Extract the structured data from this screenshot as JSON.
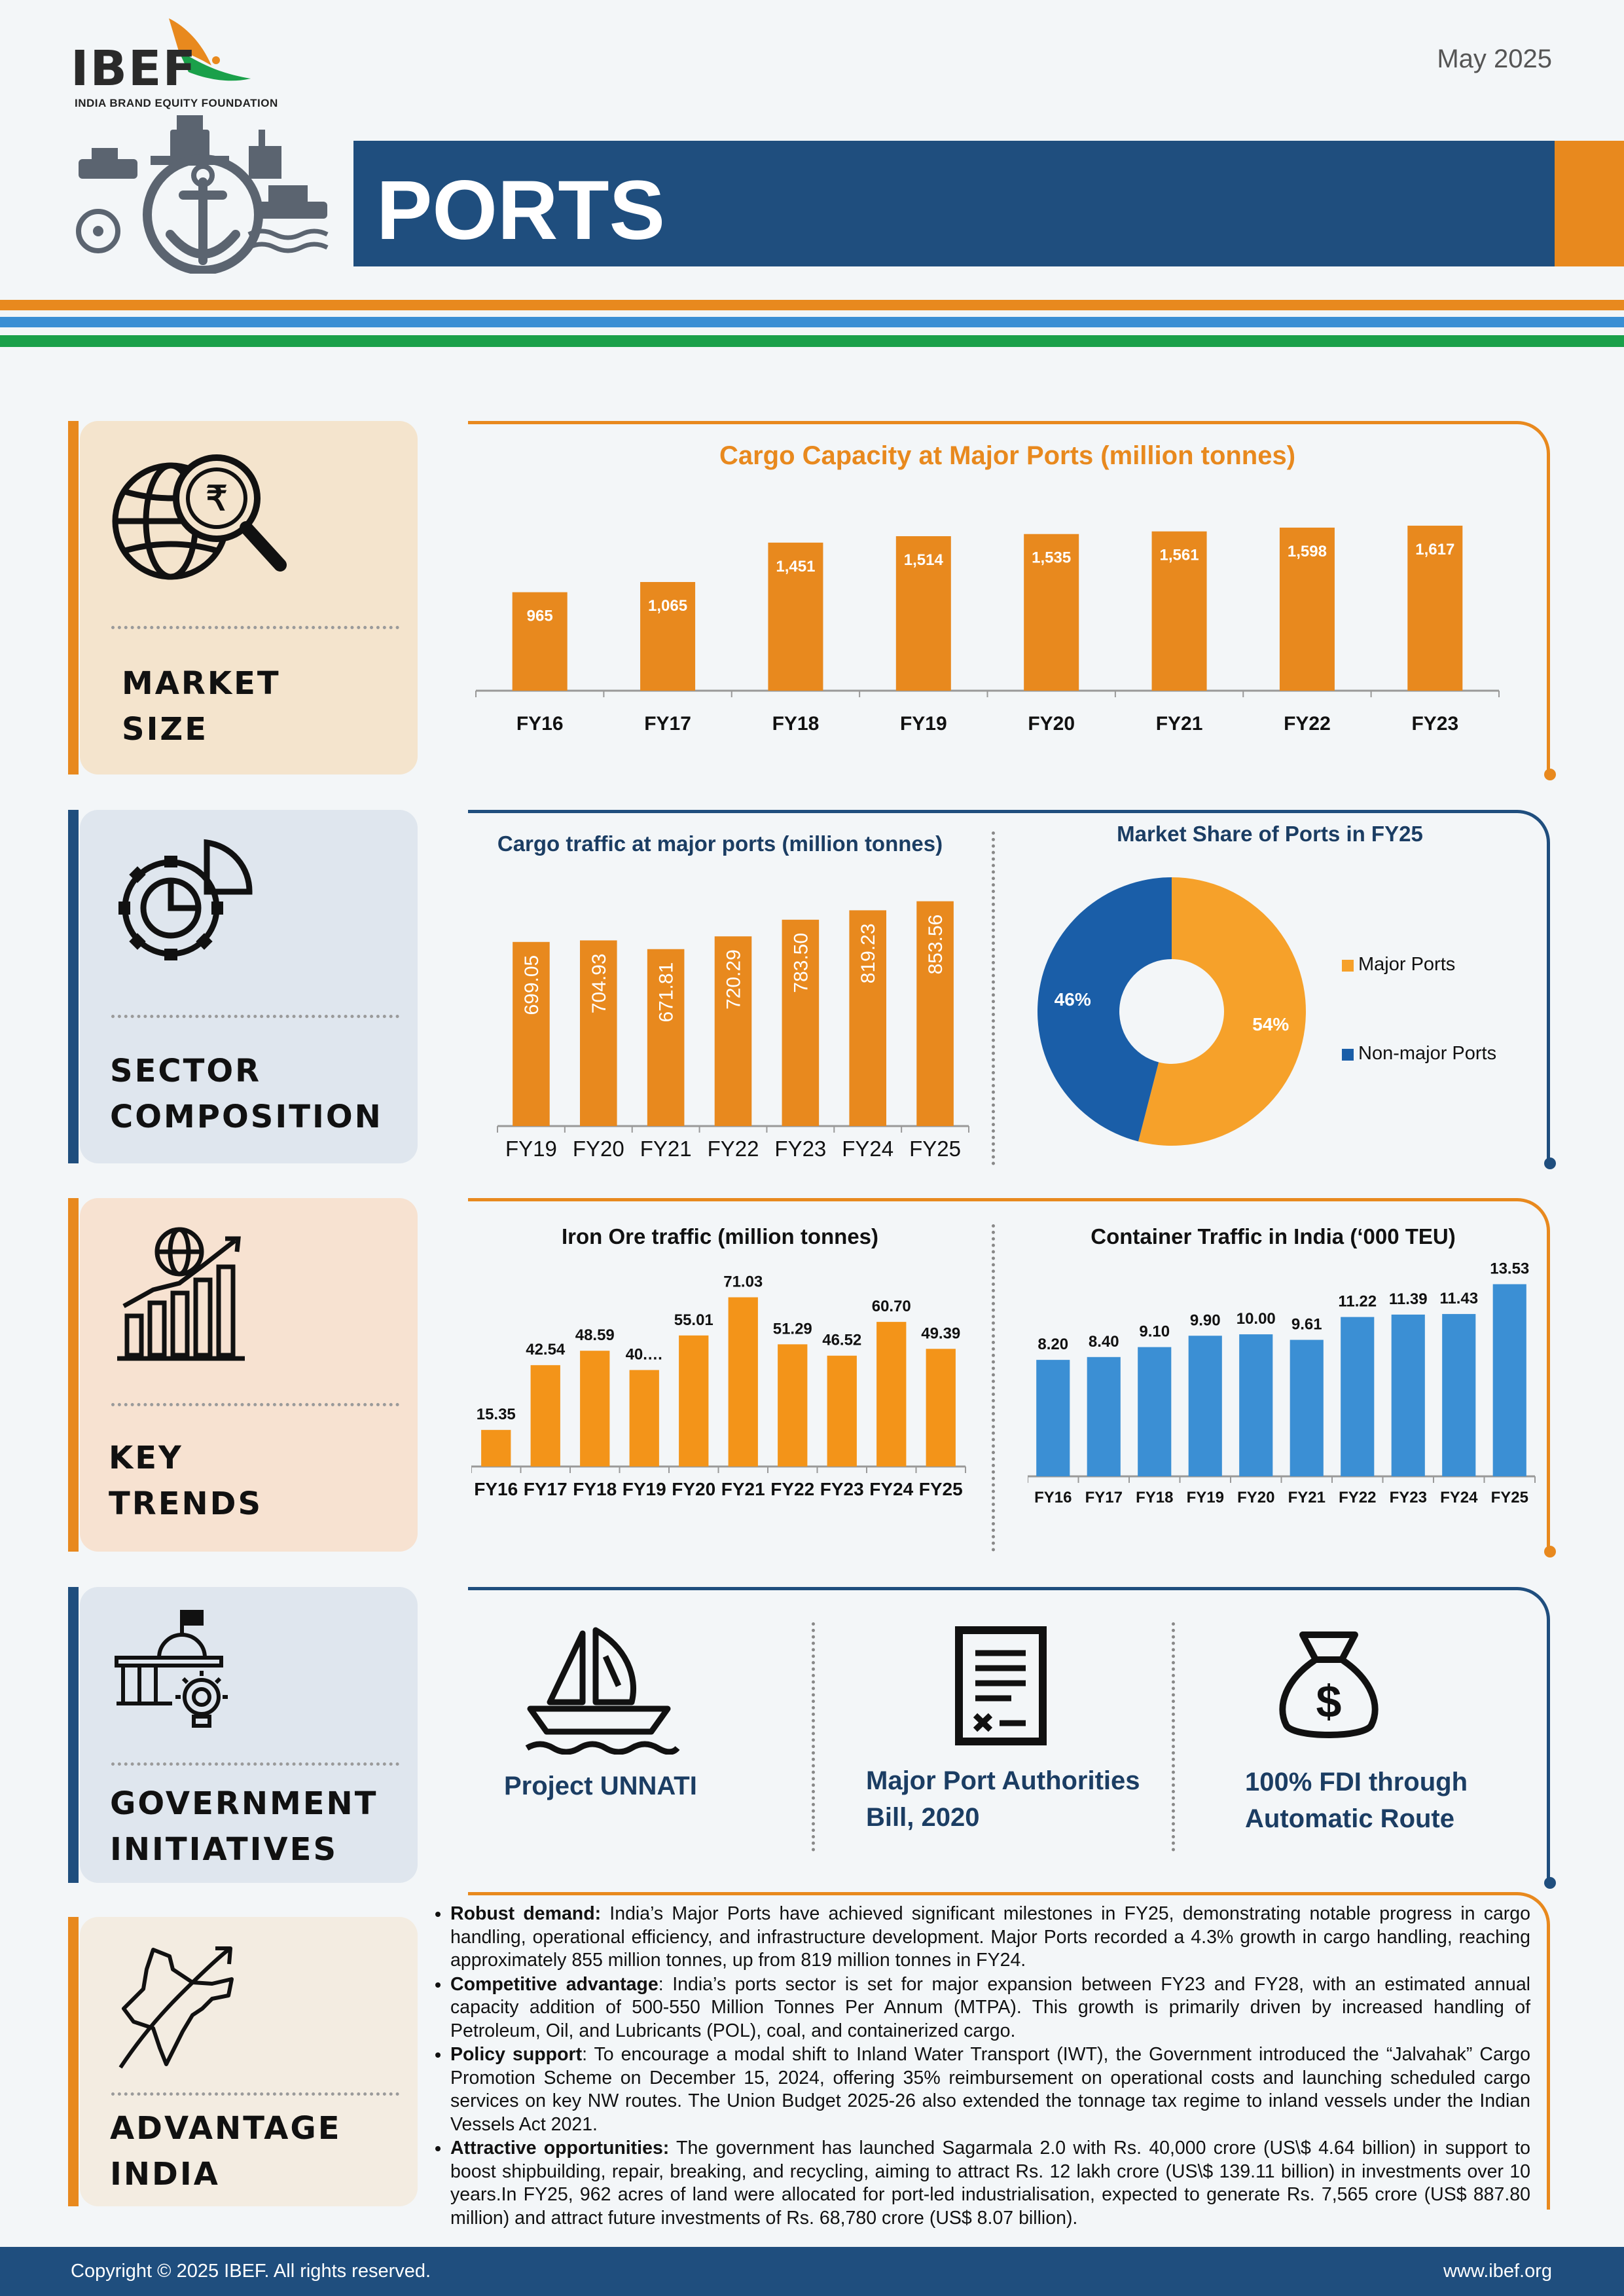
{
  "header": {
    "logo_text": "IBEF",
    "logo_subtitle": "INDIA BRAND EQUITY FOUNDATION",
    "date": "May 2025",
    "title": "PORTS"
  },
  "colors": {
    "navy": "#1f4e7e",
    "orange": "#e8891e",
    "light_orange": "#f6a12a",
    "blue": "#3b8fd4",
    "dark_blue": "#1a5ea8",
    "green": "#1aa04a",
    "stripe_blue": "#3b8fd4"
  },
  "sections": {
    "market_size": {
      "label_line1": "MARKET",
      "label_line2": "SIZE",
      "icon": "globe-magnifier-rupee-icon"
    },
    "sector_composition": {
      "label_line1": "SECTOR",
      "label_line2": "COMPOSITION",
      "icon": "gear-pie-chart-icon"
    },
    "key_trends": {
      "label_line1": "KEY",
      "label_line2": "TRENDS",
      "icon": "globe-bar-chart-icon"
    },
    "government_initiatives": {
      "label_line1": "GOVERNMENT",
      "label_line2": "INITIATIVES",
      "icon": "building-lightbulb-icon"
    },
    "advantage_india": {
      "label_line1": "ADVANTAGE",
      "label_line2": "INDIA",
      "icon": "india-map-arrow-icon"
    }
  },
  "chart_data": [
    {
      "id": "cargo_capacity",
      "type": "bar",
      "title": "Cargo Capacity at Major Ports (million tonnes)",
      "categories": [
        "FY16",
        "FY17",
        "FY18",
        "FY19",
        "FY20",
        "FY21",
        "FY22",
        "FY23"
      ],
      "values": [
        965,
        1065,
        1451,
        1514,
        1535,
        1561,
        1598,
        1617
      ],
      "labels": [
        "965",
        "1,065",
        "1,451",
        "1,514",
        "1,535",
        "1,561",
        "1,598",
        "1,617"
      ],
      "color": "#e8891e",
      "ylim": [
        0,
        1700
      ]
    },
    {
      "id": "cargo_traffic",
      "type": "bar",
      "title": "Cargo traffic at major ports (million tonnes)",
      "categories": [
        "FY19",
        "FY20",
        "FY21",
        "FY22",
        "FY23",
        "FY24",
        "FY25"
      ],
      "values": [
        699.05,
        704.93,
        671.81,
        720.29,
        783.5,
        819.23,
        853.56
      ],
      "labels": [
        "699.05",
        "704.93",
        "671.81",
        "720.29",
        "783.50",
        "819.23",
        "853.56"
      ],
      "color": "#e8891e",
      "ylim": [
        0,
        870
      ]
    },
    {
      "id": "market_share",
      "type": "pie",
      "title": "Market Share of Ports in FY25",
      "slices": [
        {
          "name": "Major Ports",
          "value": 54,
          "label": "54%",
          "color": "#f6a12a"
        },
        {
          "name": "Non-major Ports",
          "value": 46,
          "label": "46%",
          "color": "#1a5ea8"
        }
      ],
      "legend": "right"
    },
    {
      "id": "iron_ore",
      "type": "bar",
      "title": "Iron Ore traffic (million tonnes)",
      "categories": [
        "FY16",
        "FY17",
        "FY18",
        "FY19",
        "FY20",
        "FY21",
        "FY22",
        "FY23",
        "FY24",
        "FY25"
      ],
      "values": [
        15.35,
        42.54,
        48.59,
        40.5,
        55.01,
        71.03,
        51.29,
        46.52,
        60.7,
        49.39
      ],
      "labels": [
        "15.35",
        "42.54",
        "48.59",
        "40.…",
        "55.01",
        "71.03",
        "51.29",
        "46.52",
        "60.70",
        "49.39"
      ],
      "color": "#f39419",
      "ylim": [
        0,
        72
      ]
    },
    {
      "id": "container_traffic",
      "type": "bar",
      "title": "Container Traffic in India (‘000 TEU)",
      "categories": [
        "FY16",
        "FY17",
        "FY18",
        "FY19",
        "FY20",
        "FY21",
        "FY22",
        "FY23",
        "FY24",
        "FY25"
      ],
      "values": [
        8.2,
        8.4,
        9.1,
        9.9,
        10.0,
        9.61,
        11.22,
        11.39,
        11.43,
        13.53
      ],
      "labels": [
        "8.20",
        "8.40",
        "9.10",
        "9.90",
        "10.00",
        "9.61",
        "11.22",
        "11.39",
        "11.43",
        "13.53"
      ],
      "color": "#3b8fd4",
      "ylim": [
        0,
        13.6
      ]
    }
  ],
  "initiatives": [
    {
      "line1": "Project UNNATI",
      "line2": "",
      "icon": "sailboat-icon"
    },
    {
      "line1": "Major Port Authorities",
      "line2": "Bill, 2020",
      "icon": "document-icon"
    },
    {
      "line1": "100% FDI through",
      "line2": "Automatic Route",
      "icon": "money-bag-icon"
    }
  ],
  "advantage": [
    {
      "head": "Robust demand:",
      "text": " India’s Major Ports have achieved significant milestones in FY25, demonstrating notable progress in cargo handling, operational efficiency, and infrastructure development. Major Ports recorded a 4.3% growth in cargo handling, reaching approximately 855 million tonnes, up from 819 million tonnes in FY24."
    },
    {
      "head": "Competitive advantage",
      "text": ": India’s ports sector is set for major expansion between FY23 and FY28, with an estimated annual capacity addition of 500-550 Million Tonnes Per Annum (MTPA). This growth is primarily driven by increased handling of Petroleum, Oil, and Lubricants (POL), coal, and containerized cargo."
    },
    {
      "head": "Policy support",
      "text": ": To encourage a modal shift to Inland Water Transport (IWT), the Government introduced the “Jalvahak” Cargo Promotion Scheme on December 15, 2024, offering 35% reimbursement on operational costs and launching scheduled cargo services on key NW routes. The Union Budget 2025-26 also extended the tonnage tax regime to inland vessels under the Indian Vessels Act 2021."
    },
    {
      "head": "Attractive opportunities:",
      "text": " The government has launched Sagarmala 2.0 with Rs. 40,000 crore (US\\$ 4.64 billion) in support to boost shipbuilding, repair, breaking, and recycling, aiming to attract Rs. 12 lakh crore (US\\$ 139.11 billion) in investments over 10 years.In FY25, 962 acres of land were allocated for port-led industrialisation, expected to generate Rs. 7,565 crore (US$ 887.80 million) and attract future investments of Rs. 68,780 crore (US$ 8.07 billion)."
    }
  ],
  "footer": {
    "copyright": "Copyright © 2025 IBEF. All rights reserved.",
    "website": "www.ibef.org"
  }
}
